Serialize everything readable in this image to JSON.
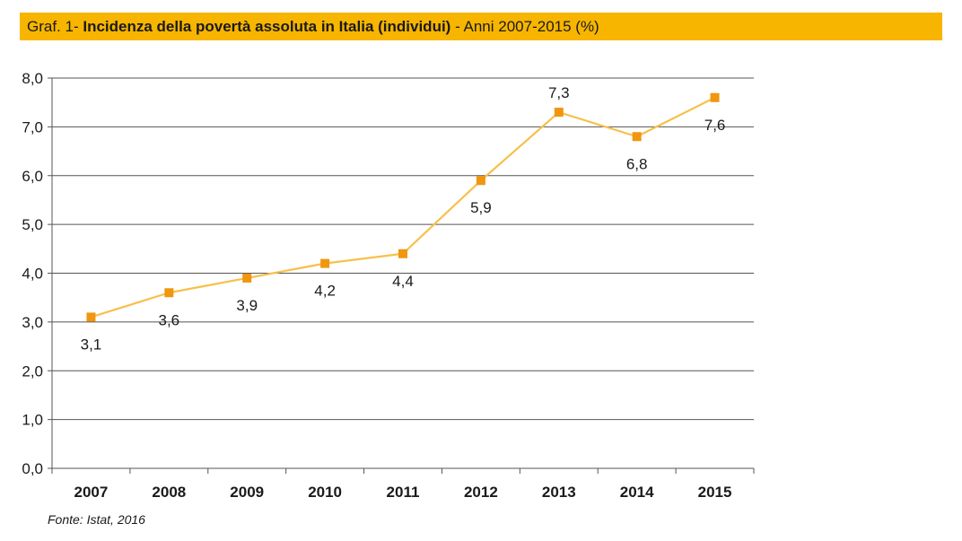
{
  "title": {
    "prefix": "Graf. 1- ",
    "bold": "Incidenza della povertà assoluta in Italia (individui)",
    "suffix": " - Anni 2007-2015 (%)"
  },
  "source": "Fonte: Istat, 2016",
  "colors": {
    "title_band": "#f7b500",
    "line": "#f7c04a",
    "marker": "#f0960f",
    "grid": "#555555"
  },
  "chart_data": {
    "type": "line",
    "title": "Graf. 1- Incidenza della povertà assoluta in Italia (individui) - Anni 2007-2015 (%)",
    "categories": [
      "2007",
      "2008",
      "2009",
      "2010",
      "2011",
      "2012",
      "2013",
      "2014",
      "2015"
    ],
    "values": [
      3.1,
      3.6,
      3.9,
      4.2,
      4.4,
      5.9,
      7.3,
      6.8,
      7.6
    ],
    "data_labels": [
      "3,1",
      "3,6",
      "3,9",
      "4,2",
      "4,4",
      "5,9",
      "7,3",
      "6,8",
      "7,6"
    ],
    "label_position": [
      "below",
      "below",
      "below",
      "below",
      "below",
      "below",
      "above",
      "below",
      "below"
    ],
    "ylim": [
      0,
      8
    ],
    "y_ticks": [
      0,
      1,
      2,
      3,
      4,
      5,
      6,
      7,
      8
    ],
    "y_tick_labels": [
      "0,0",
      "1,0",
      "2,0",
      "3,0",
      "4,0",
      "5,0",
      "6,0",
      "7,0",
      "8,0"
    ],
    "grid": true,
    "legend": "none"
  }
}
